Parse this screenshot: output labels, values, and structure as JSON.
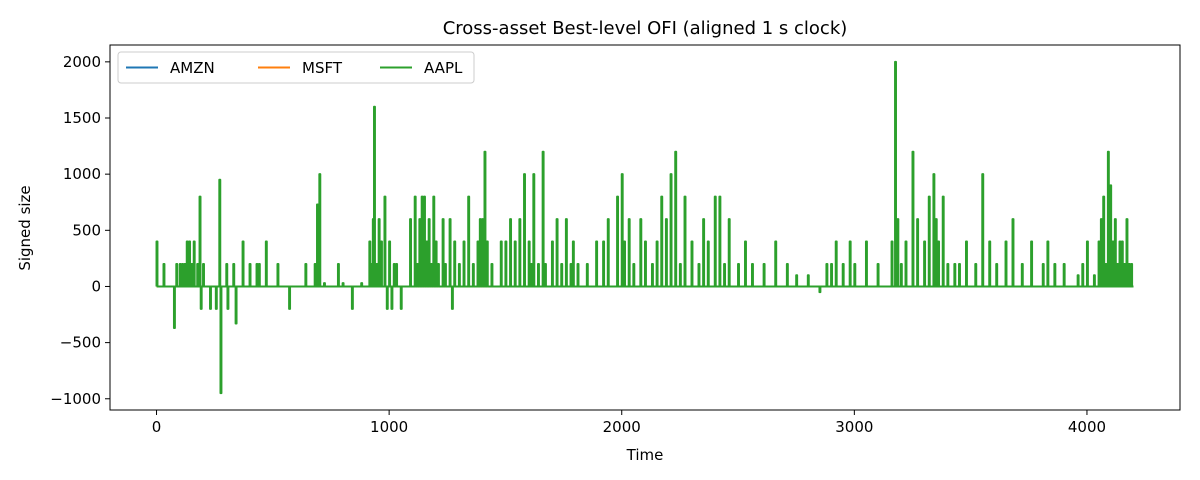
{
  "chart_data": {
    "type": "line",
    "title": "Cross-asset Best-level OFI (aligned 1 s clock)",
    "xlabel": "Time",
    "ylabel": "Signed size",
    "xlim": [
      -200,
      4400
    ],
    "ylim": [
      -1100,
      2150
    ],
    "xticks": [
      0,
      1000,
      2000,
      3000,
      4000
    ],
    "yticks": [
      -1000,
      -500,
      0,
      500,
      1000,
      1500,
      2000
    ],
    "xtick_labels": [
      "0",
      "1000",
      "2000",
      "3000",
      "4000"
    ],
    "ytick_labels": [
      "−1000",
      "−500",
      "0",
      "500",
      "1000",
      "1500",
      "2000"
    ],
    "grid": false,
    "legend": {
      "placement": "top-left",
      "columns": 3
    },
    "series": [
      {
        "name": "AMZN",
        "color": "#1f77b4",
        "x": [
          0,
          4200
        ],
        "values": [
          0,
          0
        ]
      },
      {
        "name": "MSFT",
        "color": "#ff7f0e",
        "x": [
          0,
          4200
        ],
        "values": [
          0,
          0
        ]
      },
      {
        "name": "AAPL",
        "color": "#2ca02c",
        "spikes": [
          [
            0,
            400
          ],
          [
            30,
            200
          ],
          [
            75,
            -370
          ],
          [
            85,
            200
          ],
          [
            100,
            200
          ],
          [
            110,
            200
          ],
          [
            120,
            200
          ],
          [
            130,
            400
          ],
          [
            140,
            400
          ],
          [
            150,
            200
          ],
          [
            160,
            400
          ],
          [
            175,
            200
          ],
          [
            185,
            800
          ],
          [
            190,
            -200
          ],
          [
            200,
            200
          ],
          [
            230,
            -200
          ],
          [
            255,
            -200
          ],
          [
            270,
            950
          ],
          [
            275,
            -950
          ],
          [
            300,
            200
          ],
          [
            305,
            -200
          ],
          [
            330,
            200
          ],
          [
            340,
            -330
          ],
          [
            370,
            400
          ],
          [
            400,
            200
          ],
          [
            430,
            200
          ],
          [
            440,
            200
          ],
          [
            470,
            400
          ],
          [
            520,
            200
          ],
          [
            570,
            -200
          ],
          [
            640,
            200
          ],
          [
            680,
            200
          ],
          [
            690,
            730
          ],
          [
            700,
            1000
          ],
          [
            720,
            30
          ],
          [
            780,
            200
          ],
          [
            800,
            30
          ],
          [
            840,
            -200
          ],
          [
            880,
            30
          ],
          [
            915,
            400
          ],
          [
            920,
            200
          ],
          [
            930,
            600
          ],
          [
            935,
            1600
          ],
          [
            945,
            200
          ],
          [
            955,
            600
          ],
          [
            965,
            400
          ],
          [
            980,
            800
          ],
          [
            990,
            -200
          ],
          [
            1000,
            400
          ],
          [
            1010,
            -200
          ],
          [
            1020,
            200
          ],
          [
            1030,
            200
          ],
          [
            1050,
            -200
          ],
          [
            1090,
            600
          ],
          [
            1110,
            800
          ],
          [
            1120,
            200
          ],
          [
            1130,
            600
          ],
          [
            1140,
            800
          ],
          [
            1150,
            800
          ],
          [
            1160,
            400
          ],
          [
            1170,
            600
          ],
          [
            1180,
            200
          ],
          [
            1190,
            800
          ],
          [
            1200,
            400
          ],
          [
            1210,
            200
          ],
          [
            1230,
            600
          ],
          [
            1240,
            200
          ],
          [
            1260,
            600
          ],
          [
            1270,
            -200
          ],
          [
            1280,
            400
          ],
          [
            1300,
            200
          ],
          [
            1320,
            400
          ],
          [
            1340,
            800
          ],
          [
            1360,
            200
          ],
          [
            1380,
            400
          ],
          [
            1390,
            600
          ],
          [
            1400,
            600
          ],
          [
            1410,
            1200
          ],
          [
            1420,
            400
          ],
          [
            1440,
            200
          ],
          [
            1480,
            400
          ],
          [
            1500,
            400
          ],
          [
            1520,
            600
          ],
          [
            1540,
            400
          ],
          [
            1560,
            600
          ],
          [
            1580,
            1000
          ],
          [
            1600,
            400
          ],
          [
            1610,
            200
          ],
          [
            1620,
            1000
          ],
          [
            1640,
            200
          ],
          [
            1660,
            1200
          ],
          [
            1670,
            200
          ],
          [
            1700,
            400
          ],
          [
            1720,
            600
          ],
          [
            1740,
            200
          ],
          [
            1760,
            600
          ],
          [
            1780,
            200
          ],
          [
            1790,
            400
          ],
          [
            1810,
            200
          ],
          [
            1850,
            200
          ],
          [
            1890,
            400
          ],
          [
            1920,
            400
          ],
          [
            1940,
            600
          ],
          [
            1980,
            800
          ],
          [
            2000,
            1000
          ],
          [
            2010,
            400
          ],
          [
            2030,
            600
          ],
          [
            2050,
            200
          ],
          [
            2080,
            600
          ],
          [
            2100,
            400
          ],
          [
            2130,
            200
          ],
          [
            2150,
            400
          ],
          [
            2170,
            800
          ],
          [
            2190,
            600
          ],
          [
            2210,
            1000
          ],
          [
            2230,
            1200
          ],
          [
            2250,
            200
          ],
          [
            2270,
            800
          ],
          [
            2300,
            400
          ],
          [
            2330,
            200
          ],
          [
            2350,
            600
          ],
          [
            2370,
            400
          ],
          [
            2400,
            800
          ],
          [
            2420,
            800
          ],
          [
            2440,
            200
          ],
          [
            2460,
            600
          ],
          [
            2500,
            200
          ],
          [
            2530,
            400
          ],
          [
            2560,
            200
          ],
          [
            2610,
            200
          ],
          [
            2660,
            400
          ],
          [
            2710,
            200
          ],
          [
            2750,
            100
          ],
          [
            2800,
            100
          ],
          [
            2850,
            -50
          ],
          [
            2880,
            200
          ],
          [
            2900,
            200
          ],
          [
            2920,
            400
          ],
          [
            2950,
            200
          ],
          [
            2980,
            400
          ],
          [
            3000,
            200
          ],
          [
            3050,
            400
          ],
          [
            3100,
            200
          ],
          [
            3160,
            400
          ],
          [
            3175,
            2000
          ],
          [
            3185,
            600
          ],
          [
            3200,
            200
          ],
          [
            3220,
            400
          ],
          [
            3250,
            1200
          ],
          [
            3270,
            600
          ],
          [
            3300,
            400
          ],
          [
            3320,
            800
          ],
          [
            3340,
            1000
          ],
          [
            3350,
            600
          ],
          [
            3360,
            400
          ],
          [
            3380,
            800
          ],
          [
            3400,
            200
          ],
          [
            3430,
            200
          ],
          [
            3450,
            200
          ],
          [
            3480,
            400
          ],
          [
            3520,
            200
          ],
          [
            3550,
            1000
          ],
          [
            3580,
            400
          ],
          [
            3610,
            200
          ],
          [
            3650,
            400
          ],
          [
            3680,
            600
          ],
          [
            3720,
            200
          ],
          [
            3760,
            400
          ],
          [
            3810,
            200
          ],
          [
            3830,
            400
          ],
          [
            3860,
            200
          ],
          [
            3900,
            200
          ],
          [
            3960,
            100
          ],
          [
            3980,
            200
          ],
          [
            4000,
            400
          ],
          [
            4030,
            100
          ],
          [
            4050,
            400
          ],
          [
            4060,
            600
          ],
          [
            4070,
            800
          ],
          [
            4080,
            200
          ],
          [
            4090,
            1200
          ],
          [
            4100,
            900
          ],
          [
            4110,
            400
          ],
          [
            4120,
            600
          ],
          [
            4130,
            200
          ],
          [
            4140,
            400
          ],
          [
            4150,
            400
          ],
          [
            4160,
            200
          ],
          [
            4170,
            600
          ],
          [
            4180,
            200
          ],
          [
            4190,
            200
          ]
        ]
      }
    ]
  }
}
